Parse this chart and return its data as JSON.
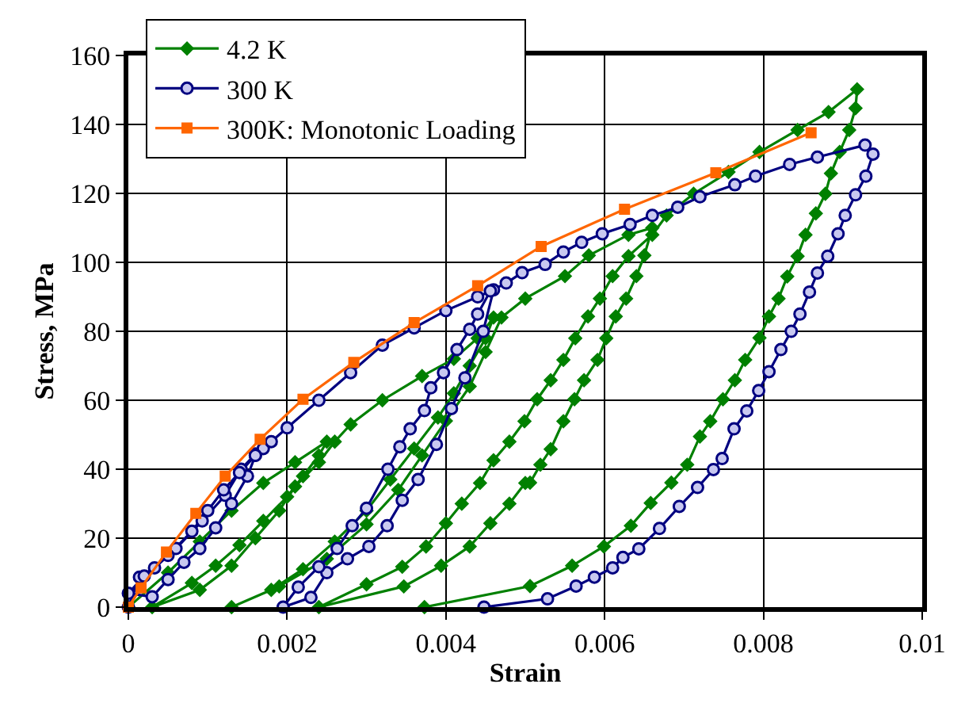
{
  "chart_data": {
    "type": "line",
    "xlabel": "Strain",
    "ylabel": "Stress, MPa",
    "xlim": [
      0,
      0.01
    ],
    "ylim": [
      0,
      160
    ],
    "xticks": [
      0,
      0.002,
      0.004,
      0.006,
      0.008,
      0.01
    ],
    "yticks": [
      0,
      20,
      40,
      60,
      80,
      100,
      120,
      140,
      160
    ],
    "grid": true,
    "legend": "top left",
    "series": [
      {
        "name": "4.2 K",
        "color": "#008000",
        "marker": "diamond",
        "x": [
          0,
          0.0005,
          0.0009,
          0.0013,
          0.0017,
          0.0021,
          0.0025,
          0.0024,
          0.0022,
          0.002,
          0.0017,
          0.0014,
          0.0011,
          0.0008,
          0.0003,
          0.0009,
          0.0013,
          0.0016,
          0.0019,
          0.0021,
          0.0024,
          0.0026,
          0.0028,
          0.0032,
          0.0037,
          0.0041,
          0.0044,
          0.0046,
          0.0045,
          0.0043,
          0.0041,
          0.0039,
          0.0036,
          0.0033,
          0.003,
          0.0026,
          0.0022,
          0.0018,
          0.0013,
          0.0019,
          0.0025,
          0.003,
          0.0034,
          0.0037,
          0.004,
          0.0043,
          0.0045,
          0.0047,
          0.005,
          0.0055,
          0.0058,
          0.0063,
          0.0066,
          0.0065,
          0.0064,
          0.00627,
          0.00614,
          0.00602,
          0.00591,
          0.00574,
          0.00562,
          0.00548,
          0.00532,
          0.00519,
          0.00506,
          0.005,
          0.0048,
          0.00456,
          0.0043,
          0.00394,
          0.00347,
          0.0024,
          0.003,
          0.00345,
          0.00375,
          0.004,
          0.0042,
          0.00443,
          0.0046,
          0.0048,
          0.00499,
          0.00515,
          0.00532,
          0.00548,
          0.00563,
          0.00579,
          0.00594,
          0.0061,
          0.0063,
          0.0066,
          0.00678,
          0.00712,
          0.00756,
          0.00795,
          0.00843,
          0.00882,
          0.00918,
          0.00916,
          0.00908,
          0.00896,
          0.00885,
          0.00878,
          0.00866,
          0.00853,
          0.00843,
          0.0083,
          0.00819,
          0.00807,
          0.00795,
          0.00777,
          0.00764,
          0.00749,
          0.00733,
          0.0072,
          0.00704,
          0.00684,
          0.00658,
          0.00633,
          0.00599,
          0.00559,
          0.00506,
          0.00373
        ],
        "values": [
          0,
          10,
          19,
          28,
          36,
          42,
          48,
          44,
          38,
          32,
          25,
          18,
          12,
          7,
          0,
          5,
          12,
          20,
          28,
          35,
          42,
          48,
          53,
          60,
          67,
          72,
          78,
          84,
          78,
          70,
          62,
          55,
          46,
          37,
          28,
          19,
          11,
          5,
          0,
          6,
          14,
          24,
          34,
          44,
          54,
          64,
          74,
          84,
          89.5,
          96,
          102,
          108,
          110,
          102,
          96,
          89.5,
          84.3,
          78,
          71.7,
          65.8,
          60.3,
          53.9,
          45.8,
          41.3,
          36.1,
          36,
          30,
          24.3,
          17.6,
          12,
          6,
          0,
          6.6,
          11.7,
          17.6,
          24.3,
          30,
          36,
          42.6,
          48,
          53.9,
          60.3,
          65.8,
          71.7,
          78,
          84.3,
          89.5,
          96,
          101.8,
          108,
          113.6,
          119.9,
          126.2,
          132,
          138.4,
          143.6,
          150.2,
          144.7,
          138.4,
          132,
          125.8,
          119.9,
          114.2,
          108,
          101.8,
          95.9,
          89.5,
          84.3,
          78.1,
          71.7,
          65.8,
          60.3,
          53.9,
          49.5,
          41.3,
          36.1,
          30.2,
          23.6,
          17.6,
          12,
          6.1,
          0
        ]
      },
      {
        "name": "300 K",
        "color": "#000080",
        "marker": "circle",
        "x": [
          0,
          0.00014,
          0.00033,
          0.0006,
          0.00093,
          0.00122,
          0.00142,
          0.0016,
          0.0017,
          0.0016,
          0.0015,
          0.0013,
          0.0011,
          0.0009,
          0.0007,
          0.0005,
          0.0003,
          0,
          0.0002,
          0.0005,
          0.0008,
          0.001,
          0.0012,
          0.0014,
          0.0016,
          0.0018,
          0.002,
          0.0024,
          0.0028,
          0.0032,
          0.0036,
          0.004,
          0.0044,
          0.0046,
          0.00447,
          0.00424,
          0.00407,
          0.00388,
          0.00365,
          0.00345,
          0.00326,
          0.00303,
          0.00276,
          0.0025,
          0.0023,
          0.00195,
          0.00214,
          0.0024,
          0.00263,
          0.00282,
          0.003,
          0.00327,
          0.00342,
          0.00355,
          0.00373,
          0.00381,
          0.00397,
          0.00414,
          0.0043,
          0.0044,
          0.00456,
          0.00476,
          0.00496,
          0.00525,
          0.00548,
          0.00571,
          0.00597,
          0.00632,
          0.0066,
          0.00692,
          0.0072,
          0.00764,
          0.0079,
          0.00833,
          0.00868,
          0.00928,
          0.00938,
          0.00929,
          0.00916,
          0.00903,
          0.00894,
          0.00881,
          0.00868,
          0.00858,
          0.00846,
          0.00835,
          0.00822,
          0.00807,
          0.00794,
          0.00779,
          0.00763,
          0.00748,
          0.00737,
          0.00717,
          0.00694,
          0.00669,
          0.00643,
          0.00623,
          0.0061,
          0.00587,
          0.00564,
          0.00528,
          0.00448
        ],
        "values": [
          0,
          8.7,
          11.4,
          17,
          25,
          32.4,
          40,
          44.4,
          46,
          44,
          38,
          30,
          23,
          17,
          13,
          8,
          3,
          4,
          9,
          15,
          22,
          28,
          34,
          39,
          44,
          48,
          52,
          60,
          68,
          76,
          81,
          86,
          90,
          92,
          80,
          66.5,
          57.6,
          47.2,
          37,
          31,
          23.6,
          17.6,
          14,
          10,
          2.8,
          0,
          5.8,
          11.7,
          17,
          23.6,
          28.7,
          40,
          46.5,
          51.7,
          57,
          63.6,
          68,
          74.7,
          80.6,
          85,
          91.7,
          94,
          97,
          99.4,
          103,
          105.8,
          108.3,
          111,
          113.6,
          116,
          119,
          122.5,
          125,
          128.4,
          130.5,
          134,
          131.4,
          125,
          119.6,
          113.6,
          108.3,
          101.8,
          96.9,
          91.4,
          85,
          80,
          74.7,
          68.3,
          62.8,
          56.9,
          51.7,
          43.1,
          39.9,
          34.7,
          29.2,
          22.8,
          16.9,
          14.4,
          11.4,
          8.7,
          6.1,
          2.4,
          0
        ]
      },
      {
        "name": "300K: Monotonic Loading",
        "color": "#ff6600",
        "marker": "square",
        "x": [
          0,
          0.00016,
          0.00048,
          0.00085,
          0.00122,
          0.00166,
          0.0022,
          0.00284,
          0.0036,
          0.0044,
          0.0052,
          0.00625,
          0.0074,
          0.0086
        ],
        "values": [
          0,
          5.6,
          16,
          27.2,
          38,
          48.7,
          60.3,
          71,
          82.5,
          93.2,
          104.6,
          115.4,
          126,
          137.6
        ]
      }
    ]
  }
}
